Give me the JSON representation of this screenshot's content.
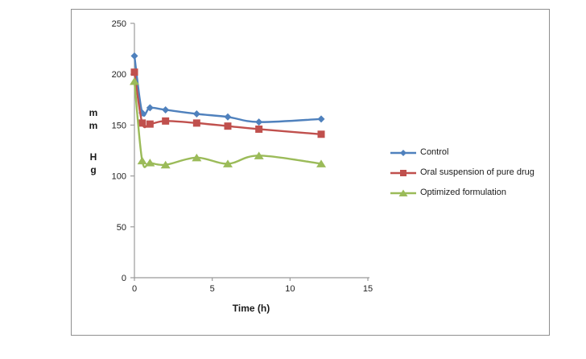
{
  "chart_data": {
    "type": "line",
    "x": [
      0,
      0.5,
      1,
      2,
      4,
      6,
      8,
      12
    ],
    "series": [
      {
        "name": "Control",
        "marker": "diamond",
        "color": "#4F81BD",
        "values": [
          218,
          162,
          167,
          165,
          161,
          158,
          153,
          156
        ]
      },
      {
        "name": "Oral suspension of pure drug",
        "marker": "square",
        "color": "#C0504D",
        "values": [
          202,
          152,
          151,
          154,
          152,
          149,
          146,
          141
        ]
      },
      {
        "name": "Optimized formulation",
        "marker": "triangle",
        "color": "#9BBB59",
        "values": [
          193,
          115,
          113,
          111,
          118,
          112,
          120,
          112
        ]
      }
    ],
    "title": "",
    "xlabel": "Time (h)",
    "ylabel": "mm Hg",
    "ylabel_lines": [
      "m",
      "m",
      "",
      "H",
      "g"
    ],
    "xlim": [
      0,
      15
    ],
    "ylim": [
      0,
      250
    ],
    "x_ticks": [
      0,
      5,
      10,
      15
    ],
    "y_ticks": [
      0,
      50,
      100,
      150,
      200,
      250
    ],
    "grid": false,
    "legend_position": "right",
    "line_smoothing": true
  },
  "style": {
    "axis_color": "#9b9b9b",
    "tick_text_color": "#1f1f1f",
    "label_text_color": "#1a1a1a",
    "figure_border_color": "#8f8f8f",
    "background_color": "#ffffff"
  }
}
